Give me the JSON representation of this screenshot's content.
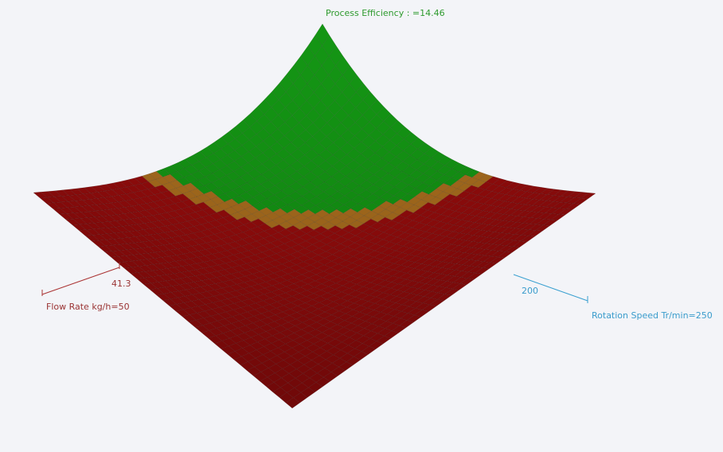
{
  "z_axis": {
    "label": "Process Efficiency : =14.46"
  },
  "x_axis": {
    "label": "Flow Rate kg/h=50",
    "tick": "41.3"
  },
  "y_axis": {
    "label": "Rotation Speed Tr/min=250",
    "tick": "200"
  }
}
